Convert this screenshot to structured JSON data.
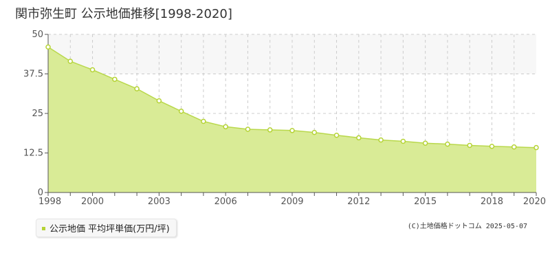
{
  "title": "関市弥生町 公示地価推移[1998-2020]",
  "legend_label": "公示地価 平均坪単価(万円/坪)",
  "copyright": "(C)土地価格ドットコム 2025-05-07",
  "colors": {
    "fill": "#d9eb96",
    "line": "#b9d84b",
    "marker_fill": "#ffffff",
    "marker_stroke": "#b5d334",
    "grid": "#cccccc",
    "band": "#f7f7f7",
    "axis": "#555555"
  },
  "chart_data": {
    "type": "area",
    "title": "関市弥生町 公示地価推移[1998-2020]",
    "xlabel": "",
    "ylabel": "",
    "xlim": [
      1998,
      2020
    ],
    "ylim": [
      0,
      50
    ],
    "y_ticks": [
      0,
      12.5,
      25,
      37.5,
      50
    ],
    "y_tick_labels": [
      "0",
      "12.5",
      "25",
      "37.5",
      "50"
    ],
    "x_ticks": [
      1998,
      2000,
      2003,
      2006,
      2009,
      2012,
      2015,
      2018,
      2020
    ],
    "x_tick_labels": [
      "1998",
      "2000",
      "2003",
      "2006",
      "2009",
      "2012",
      "2015",
      "2018",
      "2020"
    ],
    "grid": true,
    "legend": "bottom-left",
    "series": [
      {
        "name": "公示地価 平均坪単価(万円/坪)",
        "x": [
          1998,
          1999,
          2000,
          2001,
          2002,
          2003,
          2004,
          2005,
          2006,
          2007,
          2008,
          2009,
          2010,
          2011,
          2012,
          2013,
          2014,
          2015,
          2016,
          2017,
          2018,
          2019,
          2020
        ],
        "values": [
          46.0,
          41.5,
          38.8,
          35.8,
          32.8,
          29.0,
          25.7,
          22.5,
          20.8,
          20.0,
          19.8,
          19.6,
          19.0,
          18.1,
          17.3,
          16.6,
          16.2,
          15.6,
          15.3,
          14.9,
          14.6,
          14.4,
          14.2
        ]
      }
    ]
  }
}
